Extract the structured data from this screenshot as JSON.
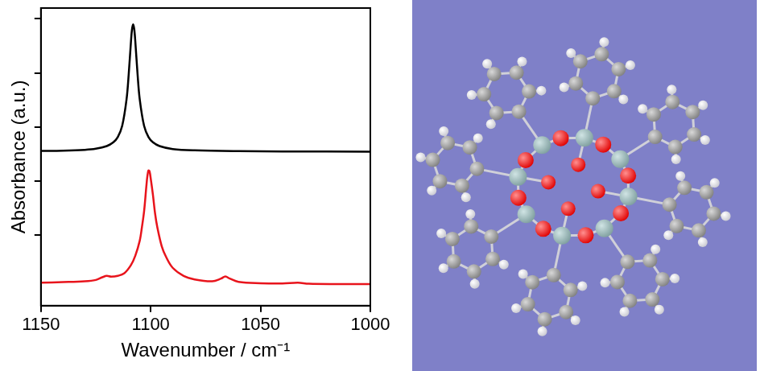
{
  "chart_data": {
    "type": "line",
    "x_label": "Wavenumber / cm⁻¹",
    "y_label": "Absorbance (a.u.)",
    "xlim": [
      1150,
      1000
    ],
    "xticks": [
      1150,
      1100,
      1050,
      1000
    ],
    "ylim": [
      -0.26,
      0.84
    ],
    "yticks": [
      0,
      0.2,
      0.4,
      0.6,
      0.8
    ],
    "tick_labels": "x",
    "grid": false,
    "series": [
      {
        "color": "#000000",
        "x": [
          1150,
          1140,
          1130,
          1125,
          1120,
          1117,
          1115,
          1113,
          1111,
          1110,
          1109,
          1108.5,
          1108,
          1107.5,
          1107,
          1106,
          1105,
          1103,
          1101,
          1099,
          1096,
          1090,
          1080,
          1060,
          1040,
          1000
        ],
        "values": [
          0.312,
          0.313,
          0.316,
          0.32,
          0.33,
          0.344,
          0.363,
          0.404,
          0.503,
          0.597,
          0.715,
          0.762,
          0.78,
          0.762,
          0.715,
          0.597,
          0.503,
          0.404,
          0.363,
          0.344,
          0.33,
          0.319,
          0.314,
          0.311,
          0.31,
          0.309
        ]
      },
      {
        "color": "#e8141c",
        "x": [
          1150,
          1140,
          1130,
          1125,
          1122,
          1120,
          1118,
          1115,
          1112,
          1109,
          1107,
          1105,
          1104,
          1103,
          1102,
          1101.5,
          1101,
          1100.5,
          1100,
          1099,
          1098,
          1097,
          1095,
          1093,
          1090,
          1085,
          1080,
          1072,
          1068,
          1066,
          1064,
          1060,
          1050,
          1040,
          1033,
          1028,
          1015,
          1000
        ],
        "values": [
          -0.175,
          -0.173,
          -0.17,
          -0.165,
          -0.155,
          -0.15,
          -0.153,
          -0.15,
          -0.14,
          -0.11,
          -0.075,
          -0.02,
          0.03,
          0.09,
          0.18,
          0.22,
          0.24,
          0.235,
          0.21,
          0.15,
          0.08,
          0.03,
          -0.04,
          -0.08,
          -0.12,
          -0.15,
          -0.163,
          -0.17,
          -0.16,
          -0.152,
          -0.16,
          -0.172,
          -0.177,
          -0.178,
          -0.175,
          -0.179,
          -0.18,
          -0.18
        ]
      }
    ]
  }
}
